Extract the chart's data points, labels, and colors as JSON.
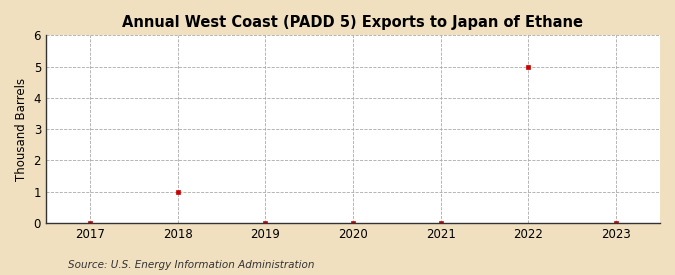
{
  "title": "Annual West Coast (PADD 5) Exports to Japan of Ethane",
  "ylabel": "Thousand Barrels",
  "source": "Source: U.S. Energy Information Administration",
  "x_data": [
    2017,
    2018,
    2019,
    2020,
    2021,
    2022,
    2023
  ],
  "y_data": [
    0,
    1,
    0,
    0,
    0,
    5,
    0
  ],
  "xlim": [
    2016.5,
    2023.5
  ],
  "ylim": [
    0,
    6
  ],
  "yticks": [
    0,
    1,
    2,
    3,
    4,
    5,
    6
  ],
  "xticks": [
    2017,
    2018,
    2019,
    2020,
    2021,
    2022,
    2023
  ],
  "marker_color": "#cc0000",
  "marker": "s",
  "marker_size": 3.5,
  "grid_color": "#aaaaaa",
  "plot_bg_color": "#ffffff",
  "fig_bg_color": "#f0e0c0",
  "title_fontsize": 10.5,
  "label_fontsize": 8.5,
  "tick_fontsize": 8.5,
  "source_fontsize": 7.5
}
